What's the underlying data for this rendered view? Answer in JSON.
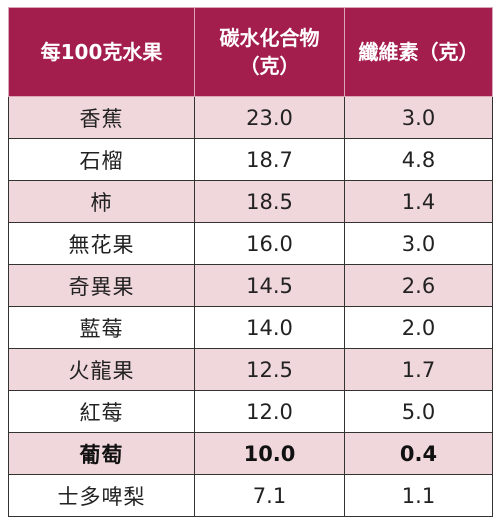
{
  "header": {
    "col1": "每100克水果",
    "col2_line1": "碳水化合物",
    "col2_line2": "（克）",
    "col3": "纖維素（克）"
  },
  "rows": [
    {
      "fruit": "香蕉",
      "carbs": "23.0",
      "fiber": "3.0"
    },
    {
      "fruit": "石榴",
      "carbs": "18.7",
      "fiber": "4.8"
    },
    {
      "fruit": "柿",
      "carbs": "18.5",
      "fiber": "1.4"
    },
    {
      "fruit": "無花果",
      "carbs": "16.0",
      "fiber": "3.0"
    },
    {
      "fruit": "奇異果",
      "carbs": "14.5",
      "fiber": "2.6"
    },
    {
      "fruit": "藍莓",
      "carbs": "14.0",
      "fiber": "2.0"
    },
    {
      "fruit": "火龍果",
      "carbs": "12.5",
      "fiber": "1.7"
    },
    {
      "fruit": "紅莓",
      "carbs": "12.0",
      "fiber": "5.0"
    },
    {
      "fruit": "葡萄",
      "carbs": "10.0",
      "fiber": "0.4"
    },
    {
      "fruit": "士多啤梨",
      "carbs": "7.1",
      "fiber": "1.1"
    }
  ],
  "colors": {
    "header_bg": "#a31e4c",
    "shaded_row_bg": "#f0d7dc",
    "plain_row_bg": "#ffffff"
  }
}
